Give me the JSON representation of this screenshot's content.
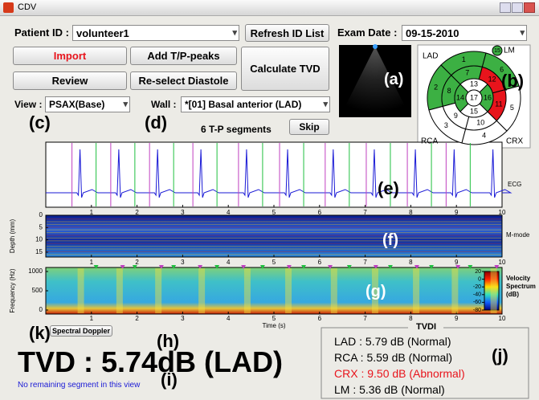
{
  "window": {
    "title": "CDV"
  },
  "controls": {
    "patient_label": "Patient ID :",
    "patient_value": "volunteer1",
    "refresh": "Refresh ID List",
    "exam_label": "Exam Date :",
    "exam_value": "09-15-2010",
    "import": "Import",
    "add_peaks": "Add T/P-peaks",
    "calculate": "Calculate TVD",
    "review": "Review",
    "reselect": "Re-select Diastole",
    "view_label": "View :",
    "view_value": "PSAX(Base)",
    "wall_label": "Wall :",
    "wall_value": "*[01] Basal anterior (LAD)",
    "skip": "Skip",
    "segments_info": "6 T-P segments",
    "spectral_button": "Spectral Doppler"
  },
  "bullseye": {
    "segments": [
      {
        "label": 1,
        "color": "#3cb043"
      },
      {
        "label": 2,
        "color": "#3cb043"
      },
      {
        "label": 3,
        "color": "#ffffff"
      },
      {
        "label": 4,
        "color": "#ffffff"
      },
      {
        "label": 5,
        "color": "#ffffff"
      },
      {
        "label": 6,
        "color": "#3cb043"
      },
      {
        "label": 7,
        "color": "#3cb043"
      },
      {
        "label": 8,
        "color": "#3cb043"
      },
      {
        "label": 9,
        "color": "#ffffff"
      },
      {
        "label": 10,
        "color": "#ffffff"
      },
      {
        "label": 11,
        "color": "#e8141c"
      },
      {
        "label": 12,
        "color": "#e8141c"
      },
      {
        "label": 13,
        "color": "#ffffff"
      },
      {
        "label": 14,
        "color": "#3cb043"
      },
      {
        "label": 15,
        "color": "#ffffff"
      },
      {
        "label": 16,
        "color": "#3cb043"
      },
      {
        "label": 17,
        "color": "#ffffff"
      }
    ],
    "lad": "LAD",
    "rca": "RCA",
    "crx": "CRX",
    "lm": "LM",
    "lm_badge": 15
  },
  "plots": {
    "ecg": {
      "label": "ECG",
      "xticks": [
        1,
        2,
        3,
        4,
        5,
        6,
        7,
        8,
        9,
        10
      ]
    },
    "mmode": {
      "label": "M-mode",
      "ylabel": "Depth (mm)",
      "yticks": [
        0,
        5,
        10,
        15
      ],
      "xticks": [
        1,
        2,
        3,
        4,
        5,
        6,
        7,
        8,
        9,
        10
      ]
    },
    "spectrum": {
      "ylabel": "Frequency (Hz)",
      "yticks": [
        0,
        500,
        1000
      ],
      "xticks": [
        1,
        2,
        3,
        4,
        5,
        6,
        7,
        8,
        9,
        10
      ],
      "xlabel": "Time (s)",
      "colorbar_label": [
        "Velocity",
        "Spectrum",
        "(dB)"
      ],
      "colorbar_ticks": [
        20,
        0,
        -20,
        -40,
        -60,
        -80
      ]
    }
  },
  "result": {
    "tvd": "TVD : 5.74dB (LAD)",
    "status": "No remaining segment in this view"
  },
  "tvdi": {
    "title": "TVDI",
    "rows": [
      {
        "text": "LAD : 5.79 dB (Normal)",
        "color": "#000000"
      },
      {
        "text": "RCA : 5.59 dB (Normal)",
        "color": "#000000"
      },
      {
        "text": "CRX : 9.50 dB (Abnormal)",
        "color": "#e8141c"
      },
      {
        "text": "LM : 5.36 dB (Normal)",
        "color": "#000000"
      }
    ]
  },
  "annotations": {
    "a": "(a)",
    "b": "(b)",
    "c": "(c)",
    "d": "(d)",
    "e": "(e)",
    "f": "(f)",
    "g": "(g)",
    "h": "(h)",
    "i": "(i)",
    "j": "(j)",
    "k": "(k)"
  }
}
